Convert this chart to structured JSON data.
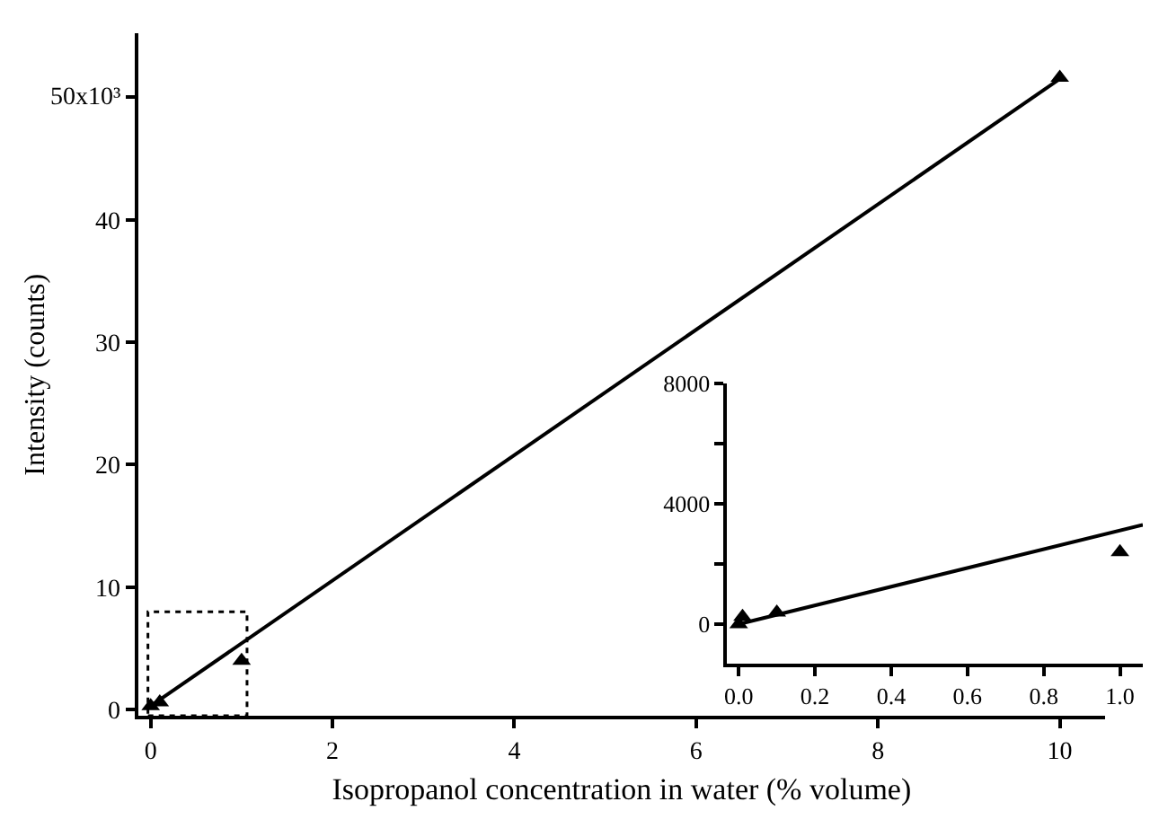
{
  "chart_data": [
    {
      "type": "scatter",
      "xlabel": "Isopropanol concentration in water (% volume)",
      "ylabel": "Intensity (counts)",
      "x": [
        0,
        0.05,
        0.1,
        1,
        10
      ],
      "series": [
        {
          "color": "#000000",
          "values": [
            0.3,
            null,
            0.6,
            4.0,
            51.6
          ],
          "marker": "triangle"
        },
        {
          "type": "line",
          "color": "#000000",
          "x": [
            0,
            10
          ],
          "values": [
            0.3,
            51.5
          ],
          "marker": "none",
          "line_style": "solid"
        }
      ],
      "xlim": [
        -0.14,
        10.5
      ],
      "xticks": [
        0,
        2,
        4,
        6,
        8,
        10
      ],
      "ylim": [
        -0.5,
        55.2
      ],
      "yticks": [
        0,
        10,
        20,
        30,
        40,
        {
          "value": 50,
          "label": null
        }
      ],
      "annotations": [
        "50x10³"
      ]
    },
    {
      "type": "scatter",
      "x": [
        0,
        0.01,
        0.1,
        1.0
      ],
      "series": [
        {
          "color": "#000000",
          "values": [
            0,
            250,
            390,
            2400
          ],
          "marker": "triangle"
        },
        {
          "type": "line",
          "color": "#000000",
          "x": [
            0,
            1.06
          ],
          "values": [
            0,
            3300
          ],
          "marker": "none",
          "line_style": "solid"
        }
      ],
      "xlim": [
        -0.03,
        1.06
      ],
      "xticks": [
        {
          "value": 0,
          "label": "0.0"
        },
        {
          "value": 0.2,
          "label": "0.2"
        },
        {
          "value": 0.4,
          "label": "0.4"
        },
        {
          "value": 0.6,
          "label": "0.6"
        },
        {
          "value": 0.8,
          "label": "0.8"
        },
        {
          "value": 1.0,
          "label": "1.0"
        }
      ],
      "ylim": [
        -1300,
        8000
      ],
      "yticks": [
        0,
        {
          "value": 2000,
          "label": null
        },
        4000,
        {
          "value": 6000,
          "label": null
        },
        8000
      ]
    }
  ]
}
